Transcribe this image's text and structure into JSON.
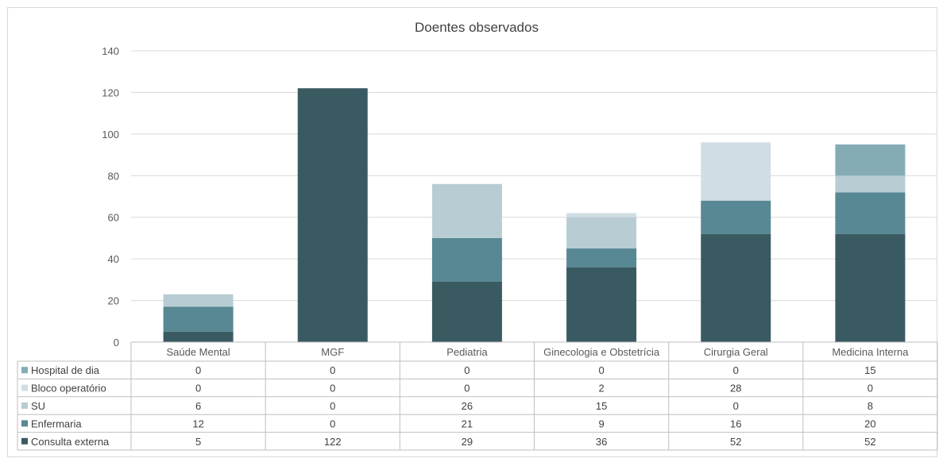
{
  "chart_data": {
    "type": "bar",
    "stacked": true,
    "title": "Doentes observados",
    "categories": [
      "Saúde Mental",
      "MGF",
      "Pediatria",
      "Ginecologia e Obstetrícia",
      "Cirurgia Geral",
      "Medicina Interna"
    ],
    "ylim": [
      0,
      140
    ],
    "yticks": [
      0,
      20,
      40,
      60,
      80,
      100,
      120,
      140
    ],
    "grid": true,
    "legend": "data-table",
    "series": [
      {
        "name": "Consulta externa",
        "color": "#3a5a62",
        "values": [
          5,
          122,
          29,
          36,
          52,
          52
        ]
      },
      {
        "name": "Enfermaria",
        "color": "#578893",
        "values": [
          12,
          0,
          21,
          9,
          16,
          20
        ]
      },
      {
        "name": "SU",
        "color": "#b7cdd3",
        "values": [
          6,
          0,
          26,
          15,
          0,
          8
        ]
      },
      {
        "name": "Bloco operatório",
        "color": "#d0dee3",
        "values": [
          0,
          0,
          0,
          2,
          28,
          0
        ]
      },
      {
        "name": "Hospital de dia",
        "color": "#85acb5",
        "values": [
          0,
          0,
          0,
          0,
          0,
          15
        ]
      }
    ],
    "table_row_order": [
      "Hospital de dia",
      "Bloco operatório",
      "SU",
      "Enfermaria",
      "Consulta externa"
    ]
  }
}
